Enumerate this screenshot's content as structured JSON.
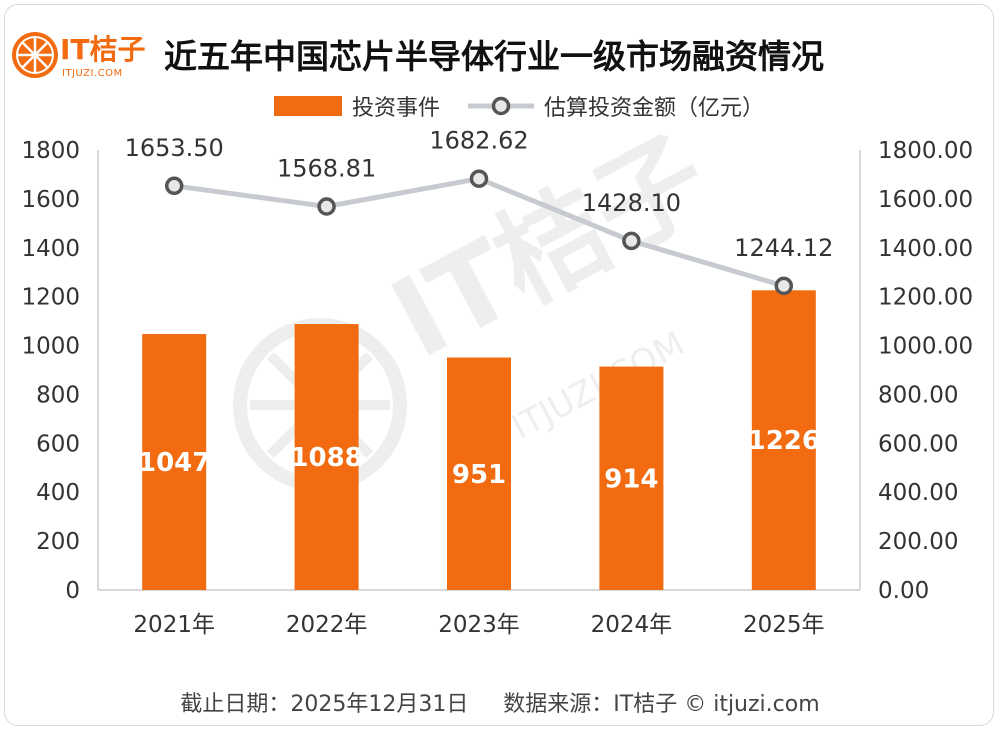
{
  "header": {
    "logo_text": "IT桔子",
    "logo_sub": "ITJUZI.COM",
    "title": "近五年中国芯片半导体行业一级市场融资情况"
  },
  "legend": {
    "bar_label": "投资事件",
    "line_label": "估算投资金额（亿元）"
  },
  "footer": {
    "date_text": "截止日期：2025年12月31日",
    "source_text": "数据来源：IT桔子 © itjuzi.com"
  },
  "watermark": {
    "text": "IT桔子",
    "sub": "ITJUZI.COM"
  },
  "colors": {
    "bar": "#f26b10",
    "line": "#c7cbd0",
    "marker": "#555555",
    "brand": "#f26b10"
  },
  "chart_data": {
    "type": "bar",
    "categories": [
      "2021年",
      "2022年",
      "2023年",
      "2024年",
      "2025年"
    ],
    "series": [
      {
        "name": "投资事件",
        "type": "bar",
        "axis": "left",
        "values": [
          1047,
          1088,
          951,
          914,
          1226
        ]
      },
      {
        "name": "估算投资金额（亿元）",
        "type": "line",
        "axis": "right",
        "values": [
          1653.5,
          1568.81,
          1682.62,
          1428.1,
          1244.12
        ]
      }
    ],
    "y_left": {
      "ylim": [
        0,
        1800
      ],
      "ticks": [
        "0",
        "200",
        "400",
        "600",
        "800",
        "1000",
        "1200",
        "1400",
        "1600",
        "1800"
      ]
    },
    "y_right": {
      "ylim": [
        0,
        1800
      ],
      "ticks": [
        "0.00",
        "200.00",
        "400.00",
        "600.00",
        "800.00",
        "1000.00",
        "1200.00",
        "1400.00",
        "1600.00",
        "1800.00"
      ]
    },
    "bar_labels": [
      "1047",
      "1088",
      "951",
      "914",
      "1226"
    ],
    "line_labels": [
      "1653.50",
      "1568.81",
      "1682.62",
      "1428.10",
      "1244.12"
    ],
    "grid": false,
    "legend_position": "top"
  }
}
